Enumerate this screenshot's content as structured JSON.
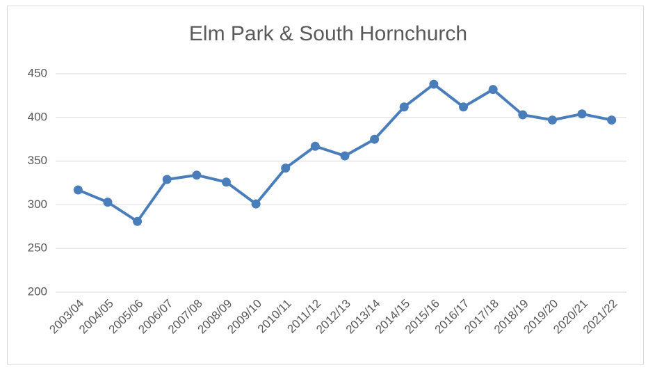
{
  "chart_data": {
    "type": "line",
    "title": "Elm Park & South Hornchurch",
    "categories": [
      "2003/04",
      "2004/05",
      "2005/06",
      "2006/07",
      "2007/08",
      "2008/09",
      "2009/10",
      "2010/11",
      "2011/12",
      "2012/13",
      "2013/14",
      "2014/15",
      "2015/16",
      "2016/17",
      "2017/18",
      "2018/19",
      "2019/20",
      "2020/21",
      "2021/22"
    ],
    "values": [
      317,
      303,
      281,
      329,
      334,
      326,
      301,
      342,
      367,
      356,
      375,
      412,
      438,
      412,
      432,
      403,
      397,
      404,
      397
    ],
    "color": "#4a7ebb",
    "ylim": [
      200,
      450
    ],
    "yticks": [
      200,
      250,
      300,
      350,
      400,
      450
    ],
    "grid": true
  }
}
